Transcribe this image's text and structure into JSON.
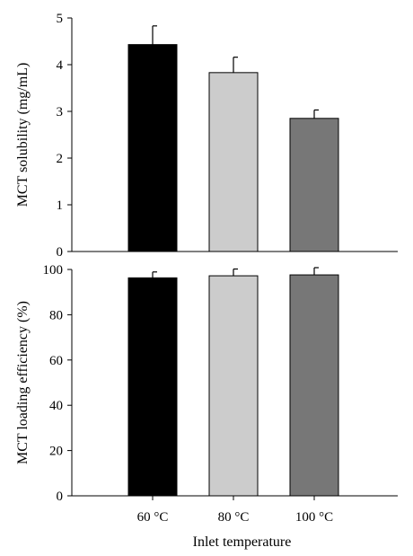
{
  "chart_data": [
    {
      "type": "bar",
      "categories": [
        "60 °C",
        "80 °C",
        "100 °C"
      ],
      "values": [
        4.43,
        3.83,
        2.85
      ],
      "errors": [
        0.4,
        0.33,
        0.18
      ],
      "colors": [
        "#000000",
        "#cccccc",
        "#777777"
      ],
      "ylabel": "MCT solubility (mg/mL)",
      "ylim": [
        0,
        5
      ],
      "yticks": [
        0,
        1,
        2,
        3,
        4,
        5
      ],
      "ytick_labels": [
        "0",
        "1",
        "2",
        "3",
        "4",
        "5"
      ],
      "show_x_tick_labels": false
    },
    {
      "type": "bar",
      "categories": [
        "60 °C",
        "80 °C",
        "100 °C"
      ],
      "values": [
        96.3,
        97.2,
        97.6
      ],
      "errors": [
        2.6,
        3.0,
        3.2
      ],
      "colors": [
        "#000000",
        "#cccccc",
        "#777777"
      ],
      "ylabel": "MCT loading efficiency (%)",
      "xlabel": "Inlet temperature",
      "ylim": [
        0,
        100
      ],
      "yticks": [
        0,
        20,
        40,
        60,
        80,
        100
      ],
      "ytick_labels": [
        "0",
        "20",
        "40",
        "60",
        "80",
        "100"
      ],
      "show_x_tick_labels": true
    }
  ]
}
